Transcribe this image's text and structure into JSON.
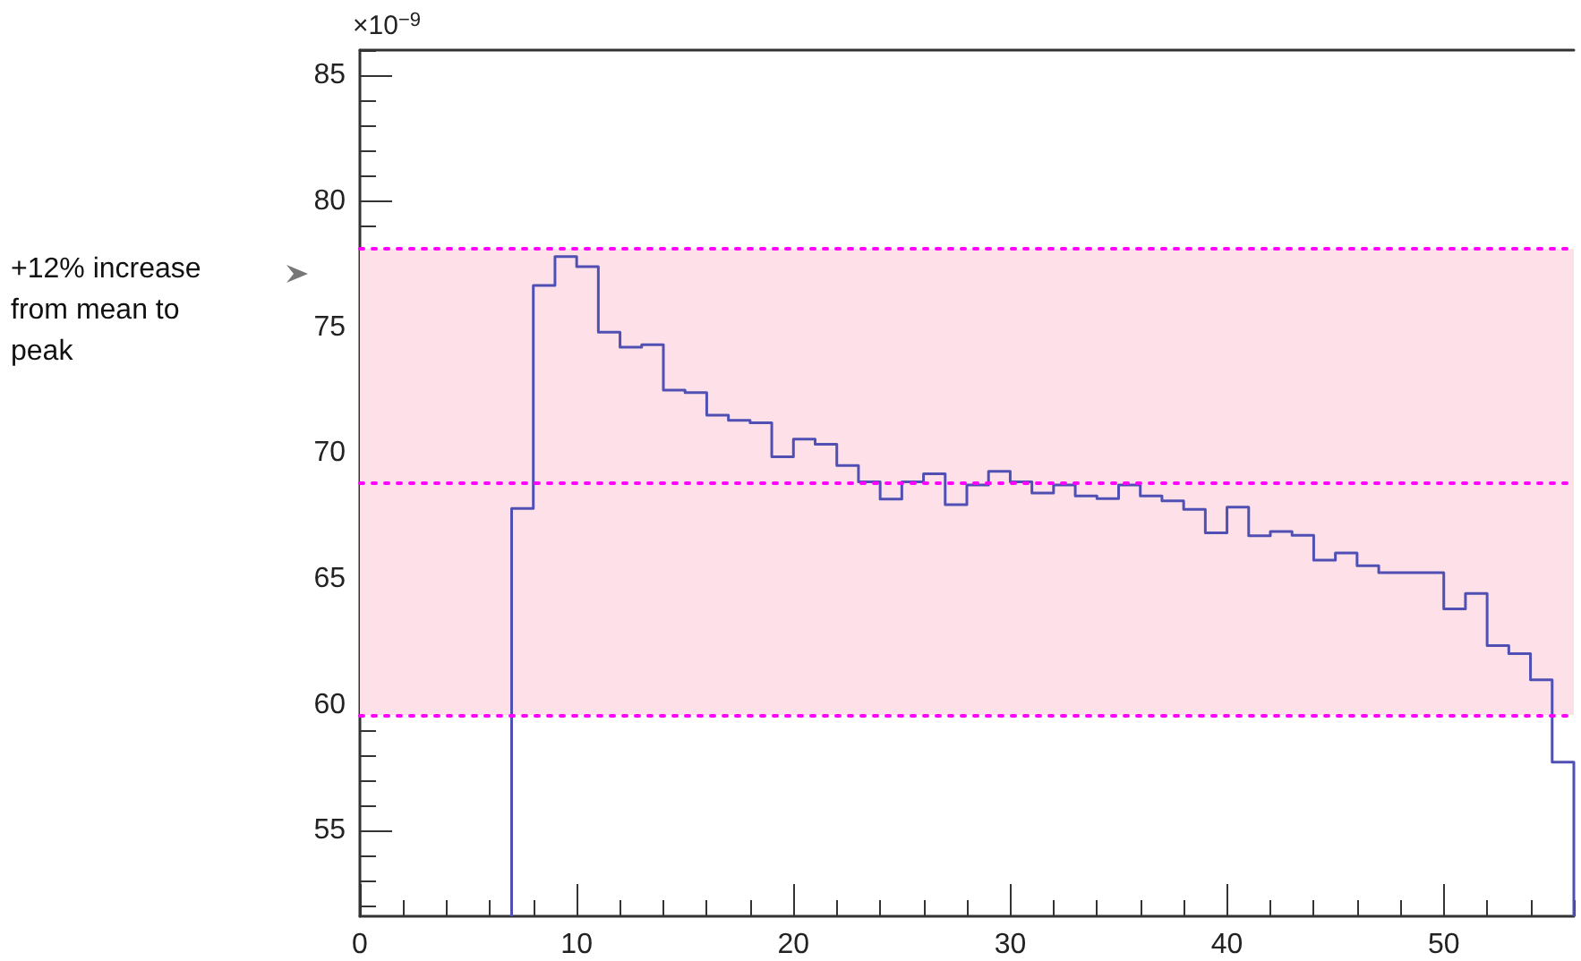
{
  "chart_data": {
    "type": "histogram",
    "bins": [
      7,
      8,
      9,
      10,
      11,
      12,
      13,
      14,
      15,
      16,
      17,
      18,
      19,
      20,
      21,
      22,
      23,
      24,
      25,
      26,
      27,
      28,
      29,
      30,
      31,
      32,
      33,
      34,
      35,
      36,
      37,
      38,
      39,
      40,
      41,
      42,
      43,
      44,
      45,
      46,
      47,
      48,
      49,
      50,
      51,
      52,
      53,
      54,
      55,
      56
    ],
    "values": [
      67.8,
      76.65,
      77.8,
      77.4,
      74.8,
      74.2,
      74.3,
      72.5,
      72.4,
      71.5,
      71.3,
      71.2,
      69.85,
      70.55,
      70.35,
      69.5,
      68.85,
      68.17,
      68.85,
      69.17,
      67.95,
      68.73,
      69.27,
      68.85,
      68.41,
      68.73,
      68.29,
      68.19,
      68.73,
      68.29,
      68.1,
      67.76,
      66.83,
      67.85,
      66.71,
      66.88,
      66.73,
      65.74,
      66.03,
      65.52,
      65.25,
      65.25,
      65.25,
      63.81,
      64.42,
      62.35,
      62.03,
      60.99,
      57.72
    ],
    "color": "#5050b4",
    "ylabel": "×10$^{−9}$",
    "xlim": [
      0,
      56
    ],
    "xticks": [
      0,
      10,
      20,
      30,
      40,
      50
    ],
    "ylim": [
      51.6,
      86
    ],
    "yticks": [
      55,
      60,
      65,
      70,
      75,
      80,
      85
    ],
    "grid": false,
    "bands": [
      {
        "axis": "y",
        "from": 59.6,
        "to": 78.1,
        "color": "#fde0e8"
      }
    ],
    "ref_lines": [
      {
        "axis": "y",
        "value": 78.1,
        "color": "#ff00ff",
        "line_style": "dotted"
      },
      {
        "axis": "y",
        "value": 68.8,
        "color": "#ff00ff",
        "line_style": "dotted"
      },
      {
        "axis": "y",
        "value": 59.6,
        "color": "#ff00ff",
        "line_style": "dotted"
      }
    ],
    "annotations": [
      "+12% increase from mean to peak"
    ]
  }
}
